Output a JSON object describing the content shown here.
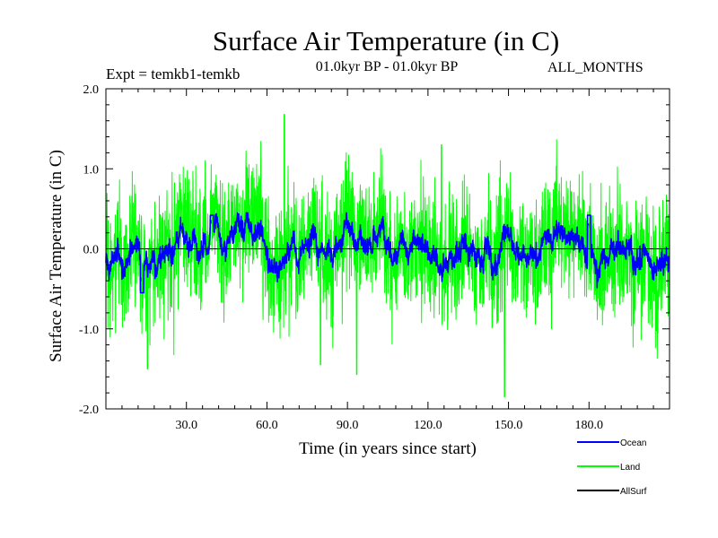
{
  "chart_data": {
    "type": "line",
    "title": "Surface Air Temperature (in C)",
    "experiment_label": "Expt = temkb1-temkb",
    "period_label": "01.0kyr BP - 01.0kyr BP",
    "months_label": "ALL_MONTHS",
    "xlabel": "Time (in years since start)",
    "ylabel": "Surface Air Temperature (in C)",
    "xlim": [
      0,
      210
    ],
    "ylim": [
      -2.0,
      2.0
    ],
    "x_ticks": [
      30,
      60,
      90,
      120,
      150,
      180
    ],
    "x_tick_labels": [
      "30.0",
      "60.0",
      "90.0",
      "120.0",
      "150.0",
      "180.0"
    ],
    "y_ticks": [
      -2.0,
      -1.0,
      0.0,
      1.0,
      2.0
    ],
    "y_tick_labels": [
      "-2.0",
      "-1.0",
      "0.0",
      "1.0",
      "2.0"
    ],
    "series": [
      {
        "name": "Land",
        "color": "#00ff00",
        "description": "monthly series, approx. 2520 points",
        "x_step": 0.0833,
        "noted_extremes": [
          {
            "x": 66.5,
            "y": 1.68
          },
          {
            "x": 148.5,
            "y": -1.85
          },
          {
            "x": 15.5,
            "y": -1.5
          },
          {
            "x": 80.0,
            "y": -1.45
          },
          {
            "x": 93.5,
            "y": -1.57
          },
          {
            "x": 125.0,
            "y": 1.3
          }
        ]
      },
      {
        "name": "Ocean",
        "color": "#0000ff",
        "description": "monthly series, range approx. -0.55 to 0.42",
        "x_step": 0.0833,
        "noted_extremes": [
          {
            "x": 13.5,
            "y": -0.55
          },
          {
            "x": 39.5,
            "y": 0.42
          },
          {
            "x": 180.0,
            "y": 0.42
          }
        ]
      },
      {
        "name": "AllSurf",
        "color": "#000000",
        "description": "drawn near zero behind other series",
        "x_step": 0.0833,
        "noted_extremes": []
      }
    ]
  }
}
